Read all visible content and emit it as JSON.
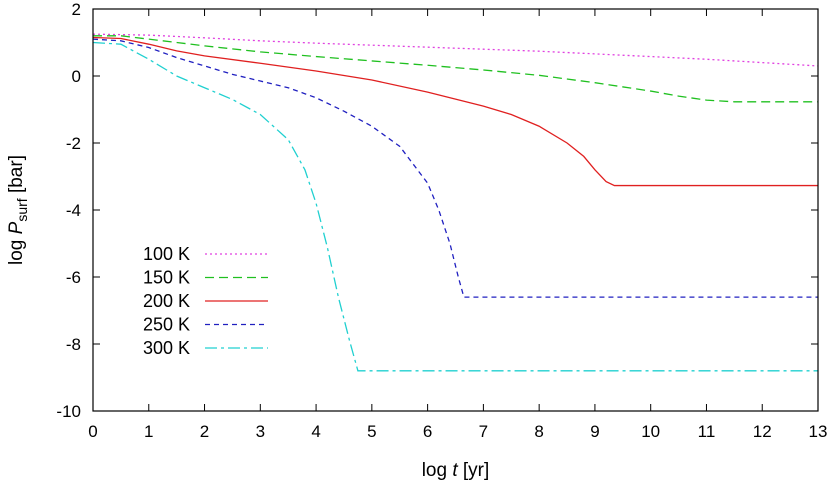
{
  "chart_data": {
    "type": "line",
    "xlabel": {
      "prefix": "log ",
      "var": "t",
      "suffix": " [yr]"
    },
    "ylabel": {
      "prefix": "log ",
      "var": "P",
      "sub": "surf",
      "suffix": " [bar]"
    },
    "xlim": [
      0,
      13
    ],
    "ylim": [
      -10,
      2
    ],
    "xticks": [
      "0",
      "1",
      "2",
      "3",
      "4",
      "5",
      "6",
      "7",
      "8",
      "9",
      "10",
      "11",
      "12",
      "13"
    ],
    "yticks": [
      "2",
      "0",
      "-2",
      "-4",
      "-6",
      "-8",
      "-10"
    ],
    "grid": false,
    "legend": "center-left",
    "series": [
      {
        "name": "100 K",
        "color": "#e040e0",
        "dash": "2,3",
        "x": [
          0,
          1,
          2,
          3,
          4,
          5,
          6,
          7,
          8,
          9,
          10,
          11,
          12,
          13
        ],
        "y": [
          1.25,
          1.22,
          1.14,
          1.05,
          0.98,
          0.92,
          0.86,
          0.8,
          0.74,
          0.66,
          0.58,
          0.5,
          0.4,
          0.3
        ]
      },
      {
        "name": "150 K",
        "color": "#20c020",
        "dash": "9,5",
        "x": [
          0,
          0.5,
          1,
          2,
          3,
          4,
          5,
          6,
          7,
          8,
          9,
          10,
          10.5,
          11,
          11.5,
          12,
          13
        ],
        "y": [
          1.2,
          1.2,
          1.1,
          0.9,
          0.72,
          0.58,
          0.45,
          0.32,
          0.18,
          0.02,
          -0.2,
          -0.45,
          -0.6,
          -0.72,
          -0.77,
          -0.77,
          -0.77
        ]
      },
      {
        "name": "200 K",
        "color": "#e02020",
        "dash": "",
        "x": [
          0,
          0.5,
          1,
          1.5,
          2,
          3,
          4,
          5,
          6,
          7,
          7.5,
          8,
          8.5,
          8.8,
          9.0,
          9.2,
          9.35,
          10,
          11,
          12,
          13
        ],
        "y": [
          1.15,
          1.12,
          0.95,
          0.75,
          0.6,
          0.38,
          0.15,
          -0.12,
          -0.48,
          -0.9,
          -1.15,
          -1.5,
          -2.0,
          -2.4,
          -2.8,
          -3.15,
          -3.27,
          -3.27,
          -3.27,
          -3.27,
          -3.27
        ]
      },
      {
        "name": "250 K",
        "color": "#2020c0",
        "dash": "5,4",
        "x": [
          0,
          0.5,
          1,
          1.5,
          2,
          2.5,
          3,
          3.5,
          4,
          4.5,
          5,
          5.5,
          6,
          6.2,
          6.4,
          6.55,
          6.65,
          7,
          8,
          9,
          10,
          11,
          12,
          13
        ],
        "y": [
          1.1,
          1.05,
          0.85,
          0.55,
          0.3,
          0.05,
          -0.15,
          -0.35,
          -0.65,
          -1.05,
          -1.5,
          -2.1,
          -3.2,
          -4.0,
          -5.0,
          -6.0,
          -6.6,
          -6.6,
          -6.6,
          -6.6,
          -6.6,
          -6.6,
          -6.6,
          -6.6
        ]
      },
      {
        "name": "300 K",
        "color": "#20d0d0",
        "dash": "12,4,3,4",
        "x": [
          0,
          0.5,
          1,
          1.5,
          2,
          2.5,
          3,
          3.5,
          3.8,
          4.0,
          4.2,
          4.4,
          4.6,
          4.75,
          5,
          6,
          7,
          8,
          9,
          10,
          11,
          12,
          13
        ],
        "y": [
          1.0,
          0.95,
          0.5,
          0.0,
          -0.35,
          -0.7,
          -1.15,
          -1.9,
          -2.8,
          -3.8,
          -5.1,
          -6.6,
          -7.9,
          -8.8,
          -8.8,
          -8.8,
          -8.8,
          -8.8,
          -8.8,
          -8.8,
          -8.8,
          -8.8,
          -8.8
        ]
      }
    ]
  }
}
